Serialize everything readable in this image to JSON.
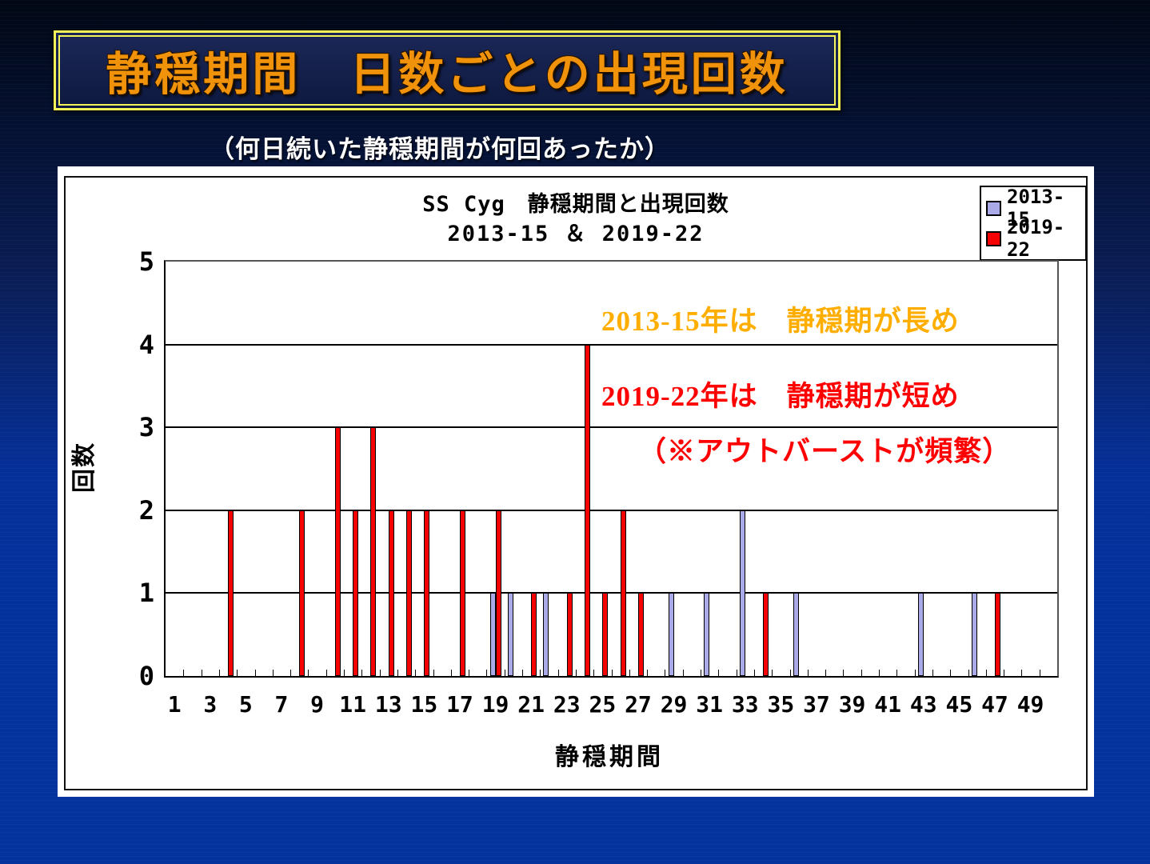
{
  "slide": {
    "title": "静穏期間　日数ごとの出現回数",
    "subtitle": "（何日続いた静穏期間が何回あったか）"
  },
  "chart": {
    "title_line1": "SS Cyg　静穏期間と出現回数",
    "title_line2": "2013-15 ＆ 2019-22",
    "y_axis_title": "回数",
    "x_axis_title": "静穏期間",
    "legend": [
      {
        "label": "2013-15",
        "color": "#aaaae8"
      },
      {
        "label": "2019-22",
        "color": "#f50202"
      }
    ],
    "annotations": [
      {
        "text": "2013-15年は　静穏期が長め",
        "color": "#ffae00"
      },
      {
        "text": "2019-22年は　静穏期が短め",
        "color": "#ff0000"
      },
      {
        "text": "（※アウトバーストが頻繁）",
        "color": "#ff0000"
      }
    ]
  },
  "chart_data": {
    "type": "bar",
    "title": "SS Cyg　静穏期間と出現回数 2013-15 ＆ 2019-22",
    "xlabel": "静穏期間",
    "ylabel": "回数",
    "ylim": [
      0,
      5
    ],
    "y_ticks": [
      0,
      1,
      2,
      3,
      4,
      5
    ],
    "grid": true,
    "legend_position": "top-right",
    "x": [
      1,
      2,
      3,
      4,
      5,
      6,
      7,
      8,
      9,
      10,
      11,
      12,
      13,
      14,
      15,
      16,
      17,
      18,
      19,
      20,
      21,
      22,
      23,
      24,
      25,
      26,
      27,
      28,
      29,
      30,
      31,
      32,
      33,
      34,
      35,
      36,
      37,
      38,
      39,
      40,
      41,
      42,
      43,
      44,
      45,
      46,
      47,
      48,
      49,
      50
    ],
    "x_tick_labels": [
      1,
      3,
      5,
      7,
      9,
      11,
      13,
      15,
      17,
      19,
      21,
      23,
      25,
      27,
      29,
      31,
      33,
      35,
      37,
      39,
      41,
      43,
      45,
      47,
      49
    ],
    "series": [
      {
        "name": "2013-15",
        "color": "#aaaae8",
        "values": [
          0,
          0,
          0,
          0,
          0,
          0,
          0,
          0,
          0,
          0,
          0,
          0,
          0,
          0,
          0,
          0,
          0,
          0,
          1,
          1,
          0,
          1,
          0,
          0,
          0,
          0,
          0,
          0,
          1,
          0,
          1,
          0,
          2,
          0,
          0,
          1,
          0,
          0,
          0,
          0,
          0,
          0,
          1,
          0,
          0,
          1,
          0,
          0,
          0,
          0
        ]
      },
      {
        "name": "2019-22",
        "color": "#f50202",
        "values": [
          0,
          0,
          0,
          2,
          0,
          0,
          0,
          2,
          0,
          3,
          2,
          3,
          2,
          2,
          2,
          0,
          2,
          0,
          2,
          0,
          1,
          0,
          1,
          4,
          1,
          2,
          1,
          0,
          0,
          0,
          0,
          0,
          0,
          1,
          0,
          0,
          0,
          0,
          0,
          0,
          0,
          0,
          0,
          0,
          0,
          0,
          1,
          0,
          0,
          0
        ]
      }
    ]
  }
}
